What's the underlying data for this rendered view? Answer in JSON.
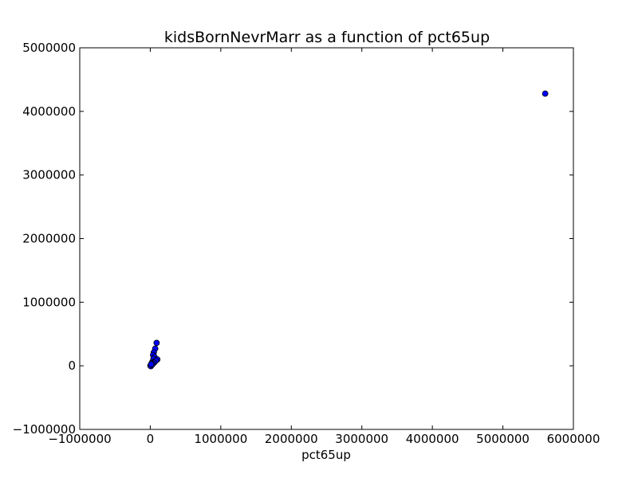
{
  "chart_data": {
    "type": "scatter",
    "title": "kidsBornNevrMarr as a function of pct65up",
    "xlabel": "pct65up",
    "ylabel": "",
    "xlim": [
      -1000000,
      6000000
    ],
    "ylim": [
      -1000000,
      5000000
    ],
    "x_ticks": [
      -1000000,
      0,
      1000000,
      2000000,
      3000000,
      4000000,
      5000000,
      6000000
    ],
    "y_ticks": [
      -1000000,
      0,
      1000000,
      2000000,
      3000000,
      4000000,
      5000000
    ],
    "x_tick_labels": [
      "−1000000",
      "0",
      "1000000",
      "2000000",
      "3000000",
      "4000000",
      "5000000",
      "6000000"
    ],
    "y_tick_labels": [
      "−1000000",
      "0",
      "1000000",
      "2000000",
      "3000000",
      "4000000",
      "5000000"
    ],
    "grid": false,
    "legend": "none",
    "marker_color": "#0000ff",
    "marker_edge_color": "#000000",
    "points": [
      {
        "x": 5600000,
        "y": 4280000
      },
      {
        "x": 90000,
        "y": 360000
      },
      {
        "x": 70000,
        "y": 270000
      },
      {
        "x": 50000,
        "y": 210000
      },
      {
        "x": 40000,
        "y": 170000
      },
      {
        "x": 60000,
        "y": 140000
      },
      {
        "x": 45000,
        "y": 110000
      },
      {
        "x": 100000,
        "y": 100000
      },
      {
        "x": 80000,
        "y": 80000
      },
      {
        "x": 30000,
        "y": 60000
      },
      {
        "x": 55000,
        "y": 50000
      },
      {
        "x": 20000,
        "y": 40000
      },
      {
        "x": 35000,
        "y": 30000
      },
      {
        "x": 15000,
        "y": 20000
      },
      {
        "x": 10000,
        "y": 10000
      },
      {
        "x": 5000,
        "y": 5000
      },
      {
        "x": 2000,
        "y": 2000
      },
      {
        "x": 8000,
        "y": -5000
      },
      {
        "x": 25000,
        "y": 15000
      },
      {
        "x": 12000,
        "y": 25000
      }
    ]
  }
}
